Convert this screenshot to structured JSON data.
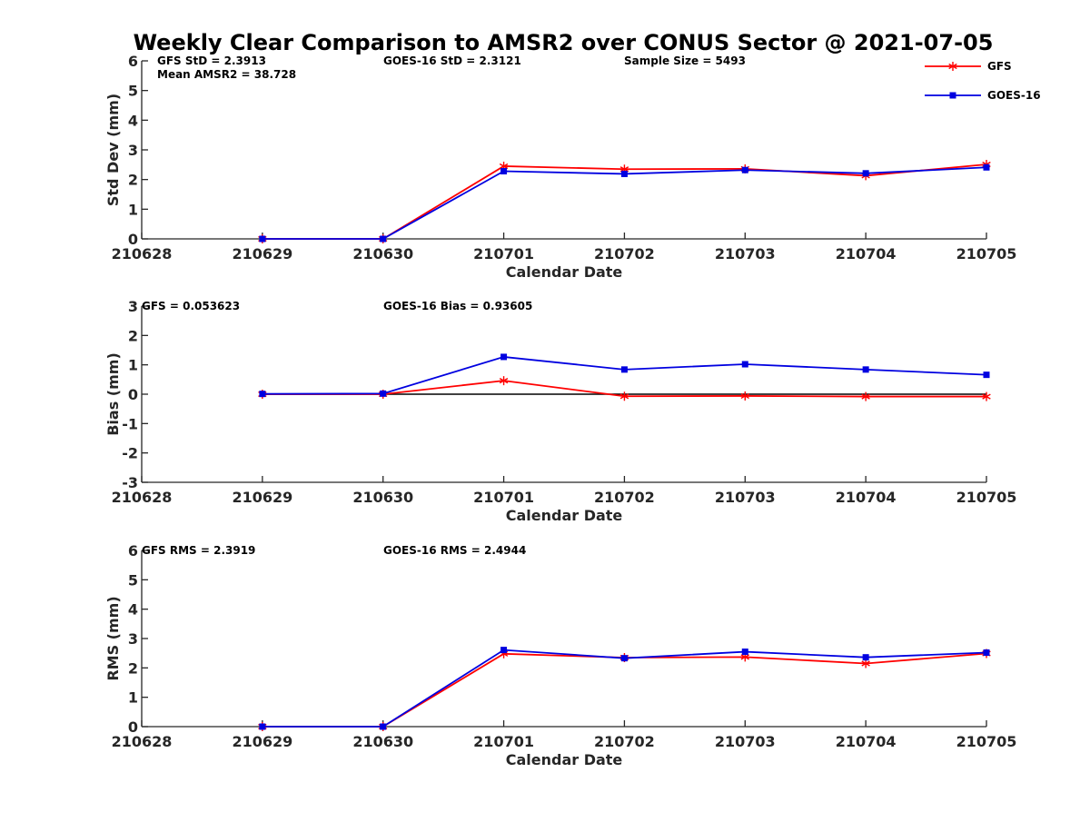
{
  "colors": {
    "gfs": "#ff0000",
    "goes": "#0000e0",
    "axis": "#262626",
    "zero_line": "#000000"
  },
  "chart_data": {
    "type": "line",
    "title": "Weekly Clear Comparison to AMSR2 over CONUS Sector @ 2021-07-05",
    "legend": {
      "placement": "top-right",
      "entries": [
        {
          "name": "GFS",
          "color": "#ff0000",
          "marker": "asterisk"
        },
        {
          "name": "GOES-16",
          "color": "#0000e0",
          "marker": "square"
        }
      ]
    },
    "x_ticks": [
      "210628",
      "210629",
      "210630",
      "210701",
      "210702",
      "210703",
      "210704",
      "210705"
    ],
    "xlim": [
      "210628",
      "210705"
    ],
    "panels": [
      {
        "id": "std",
        "ylabel": "Std Dev (mm)",
        "xlabel": "Calendar Date",
        "ylim": [
          0,
          6
        ],
        "yticks": [
          "0",
          "1",
          "2",
          "3",
          "4",
          "5",
          "6"
        ],
        "zero_line": false,
        "annotations": [
          {
            "text": "GFS StD = 2.3913",
            "slot": "left-line1"
          },
          {
            "text": "Mean AMSR2 = 38.728",
            "slot": "left-line2"
          },
          {
            "text": "GOES-16 StD = 2.3121",
            "slot": "middle"
          },
          {
            "text": "Sample Size = 5493",
            "slot": "right"
          }
        ],
        "x": [
          "210629",
          "210630",
          "210701",
          "210702",
          "210703",
          "210704",
          "210705"
        ],
        "series": [
          {
            "name": "GFS",
            "values": [
              0,
              0,
              2.45,
              2.35,
              2.36,
              2.13,
              2.51
            ]
          },
          {
            "name": "GOES-16",
            "values": [
              0,
              0,
              2.28,
              2.19,
              2.32,
              2.21,
              2.41
            ]
          }
        ]
      },
      {
        "id": "bias",
        "ylabel": "Bias (mm)",
        "xlabel": "Calendar Date",
        "ylim": [
          -3,
          3
        ],
        "yticks": [
          "-3",
          "-2",
          "-1",
          "0",
          "1",
          "2",
          "3"
        ],
        "zero_line": true,
        "annotations": [
          {
            "text": "GFS = 0.053623",
            "slot": "left-line1"
          },
          {
            "text": "GOES-16 Bias  = 0.93605",
            "slot": "middle"
          }
        ],
        "x": [
          "210629",
          "210630",
          "210701",
          "210702",
          "210703",
          "210704",
          "210705"
        ],
        "series": [
          {
            "name": "GFS",
            "values": [
              0,
              0,
              0.46,
              -0.07,
              -0.06,
              -0.08,
              -0.08
            ]
          },
          {
            "name": "GOES-16",
            "values": [
              0.01,
              0.02,
              1.27,
              0.84,
              1.02,
              0.84,
              0.66
            ]
          }
        ]
      },
      {
        "id": "rms",
        "ylabel": "RMS (mm)",
        "xlabel": "Calendar Date",
        "ylim": [
          0,
          6
        ],
        "yticks": [
          "0",
          "1",
          "2",
          "3",
          "4",
          "5",
          "6"
        ],
        "zero_line": false,
        "annotations": [
          {
            "text": "GFS RMS = 2.3919",
            "slot": "left-line1"
          },
          {
            "text": "GOES-16 RMS = 2.4944",
            "slot": "middle"
          }
        ],
        "x": [
          "210629",
          "210630",
          "210701",
          "210702",
          "210703",
          "210704",
          "210705"
        ],
        "series": [
          {
            "name": "GFS",
            "values": [
              0,
              0,
              2.48,
              2.35,
              2.37,
              2.15,
              2.49
            ]
          },
          {
            "name": "GOES-16",
            "values": [
              0,
              0,
              2.61,
              2.33,
              2.55,
              2.36,
              2.52
            ]
          }
        ]
      }
    ]
  }
}
